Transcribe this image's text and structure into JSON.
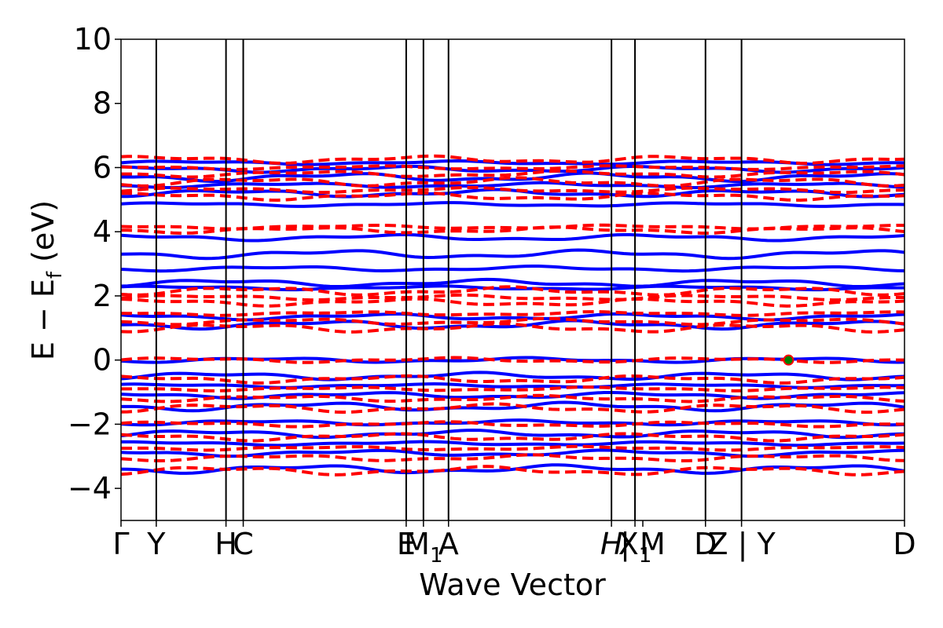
{
  "chart_data": {
    "type": "line",
    "xlabel": "Wave Vector",
    "ylabel": "E − E",
    "ylabel_sub": "f",
    "ylabel_unit": " (eV)",
    "ylim": [
      -5,
      10
    ],
    "yticks": [
      -4,
      -2,
      0,
      2,
      4,
      6,
      8,
      10
    ],
    "ytick_labels": [
      "−4",
      "−2",
      "0",
      "2",
      "4",
      "6",
      "8",
      "10"
    ],
    "xlim": [
      0,
      1
    ],
    "kpoints": [
      {
        "pos": 0.0,
        "label": "Γ"
      },
      {
        "pos": 0.045,
        "label": "Y"
      },
      {
        "pos": 0.134,
        "label": "H"
      },
      {
        "pos": 0.156,
        "label": "C"
      },
      {
        "pos": 0.364,
        "label": "E"
      },
      {
        "pos": 0.386,
        "label": "M",
        "sub": "1"
      },
      {
        "pos": 0.418,
        "label": "A"
      },
      {
        "pos": 0.626,
        "label": "H",
        "italic": true
      },
      {
        "pos": 0.656,
        "label": "X",
        "sub": "1"
      },
      {
        "pos": 0.666,
        "label": "| M"
      },
      {
        "pos": 0.746,
        "label": "D"
      },
      {
        "pos": 0.792,
        "label": "Z | Y"
      },
      {
        "pos": 1.0,
        "label": "D"
      }
    ],
    "kline_positions": [
      0.045,
      0.134,
      0.156,
      0.364,
      0.386,
      0.418,
      0.626,
      0.656,
      0.746,
      0.792
    ],
    "colors": {
      "spin_up": "#0000ff",
      "spin_down": "#ff0000",
      "marker_fill": "#008000",
      "marker_edge": "#ff0000"
    },
    "series": [
      {
        "style": "solid",
        "bands": [
          6.15,
          5.95,
          5.7,
          5.45,
          5.2,
          4.85,
          3.82,
          3.3,
          2.85,
          2.4,
          2.25,
          1.35,
          1.1,
          0.0,
          -0.5,
          -0.8,
          -1.1,
          -1.45,
          -1.95,
          -2.3,
          -2.6,
          -2.9,
          -3.4
        ]
      },
      {
        "style": "dashed",
        "bands": [
          6.25,
          6.0,
          5.8,
          5.55,
          5.3,
          5.1,
          4.15,
          4.05,
          2.15,
          1.95,
          1.8,
          1.45,
          1.2,
          1.0,
          0.0,
          -0.6,
          -0.9,
          -1.2,
          -1.5,
          -2.0,
          -2.4,
          -2.75,
          -3.05,
          -3.45
        ]
      }
    ],
    "highlight_points": [
      {
        "x": 0.852,
        "y": 0.0
      }
    ],
    "grid": false
  }
}
